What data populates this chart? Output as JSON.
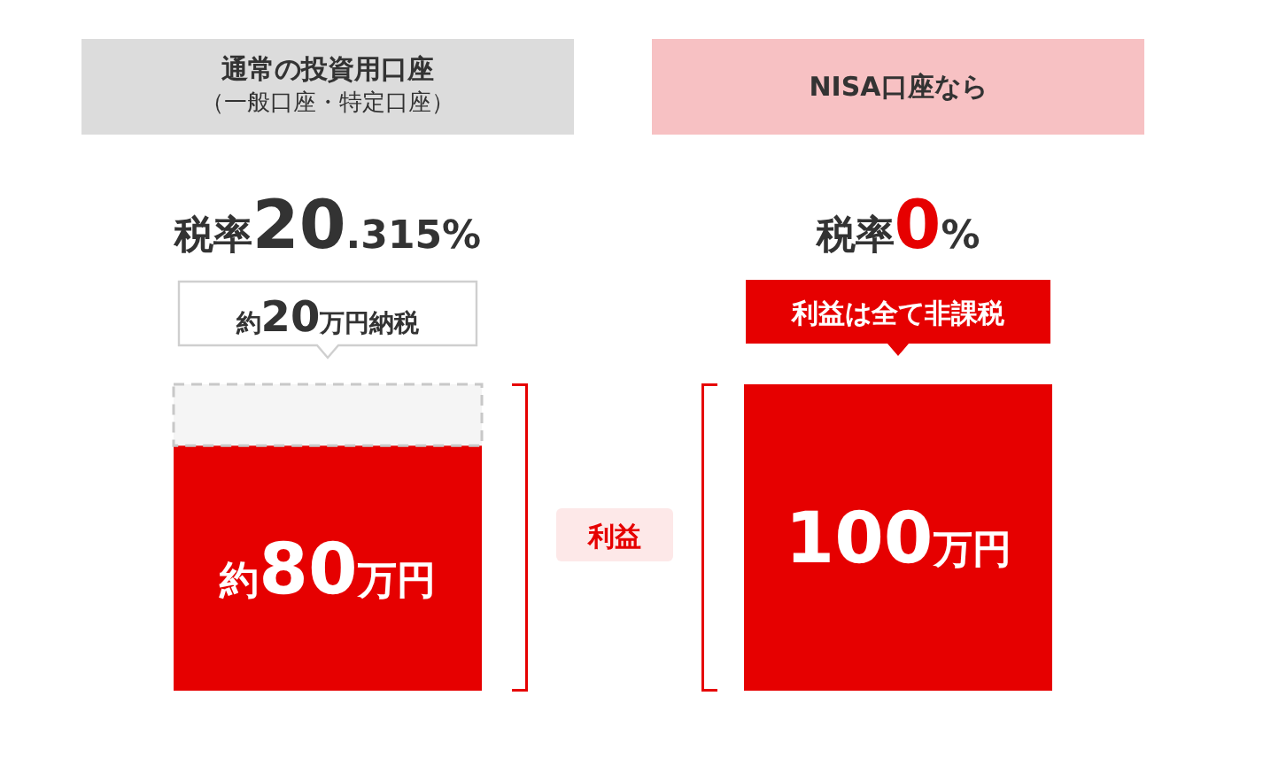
{
  "chart_data": {
    "type": "bar",
    "stacked": true,
    "categories": [
      "通常の投資用口座（一般口座・特定口座）",
      "NISA口座なら"
    ],
    "colors": [
      "#dcdcdc",
      "#f7c1c3"
    ],
    "series": [
      {
        "color": "#e60000",
        "values": [
          80,
          100
        ],
        "value_labels": [
          "約80万円",
          "100万円"
        ]
      },
      {
        "color": "#f5f5f5",
        "line_style": "dashed",
        "values": [
          20,
          0
        ],
        "value_labels": [
          "約20万円納税",
          null
        ]
      }
    ],
    "annotations": [
      "税率20.315%",
      "税率0%",
      "利益は全て非課税",
      "利益"
    ]
  }
}
